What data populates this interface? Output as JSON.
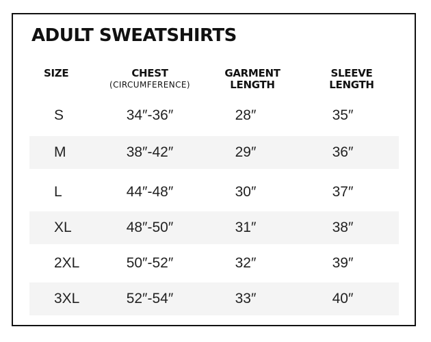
{
  "title": "ADULT SWEATSHIRTS",
  "headers": {
    "size": "SIZE",
    "chest": "CHEST",
    "chest_sub": "(CIRCUMFERENCE)",
    "garment_line1": "GARMENT",
    "garment_line2": "LENGTH",
    "sleeve_line1": "SLEEVE",
    "sleeve_line2": "LENGTH"
  },
  "rows": [
    {
      "size": "S",
      "chest": "34″-36″",
      "garment": "28″",
      "sleeve": "35″"
    },
    {
      "size": "M",
      "chest": "38″-42″",
      "garment": "29″",
      "sleeve": "36″"
    },
    {
      "size": "L",
      "chest": "44″-48″",
      "garment": "30″",
      "sleeve": "37″"
    },
    {
      "size": "XL",
      "chest": "48″-50″",
      "garment": "31″",
      "sleeve": "38″"
    },
    {
      "size": "2XL",
      "chest": "50″-52″",
      "garment": "32″",
      "sleeve": "39″"
    },
    {
      "size": "3XL",
      "chest": "52″-54″",
      "garment": "33″",
      "sleeve": "40″"
    }
  ],
  "colors": {
    "border": "#111111",
    "row_shade": "#f4f4f4",
    "text": "#222222"
  }
}
